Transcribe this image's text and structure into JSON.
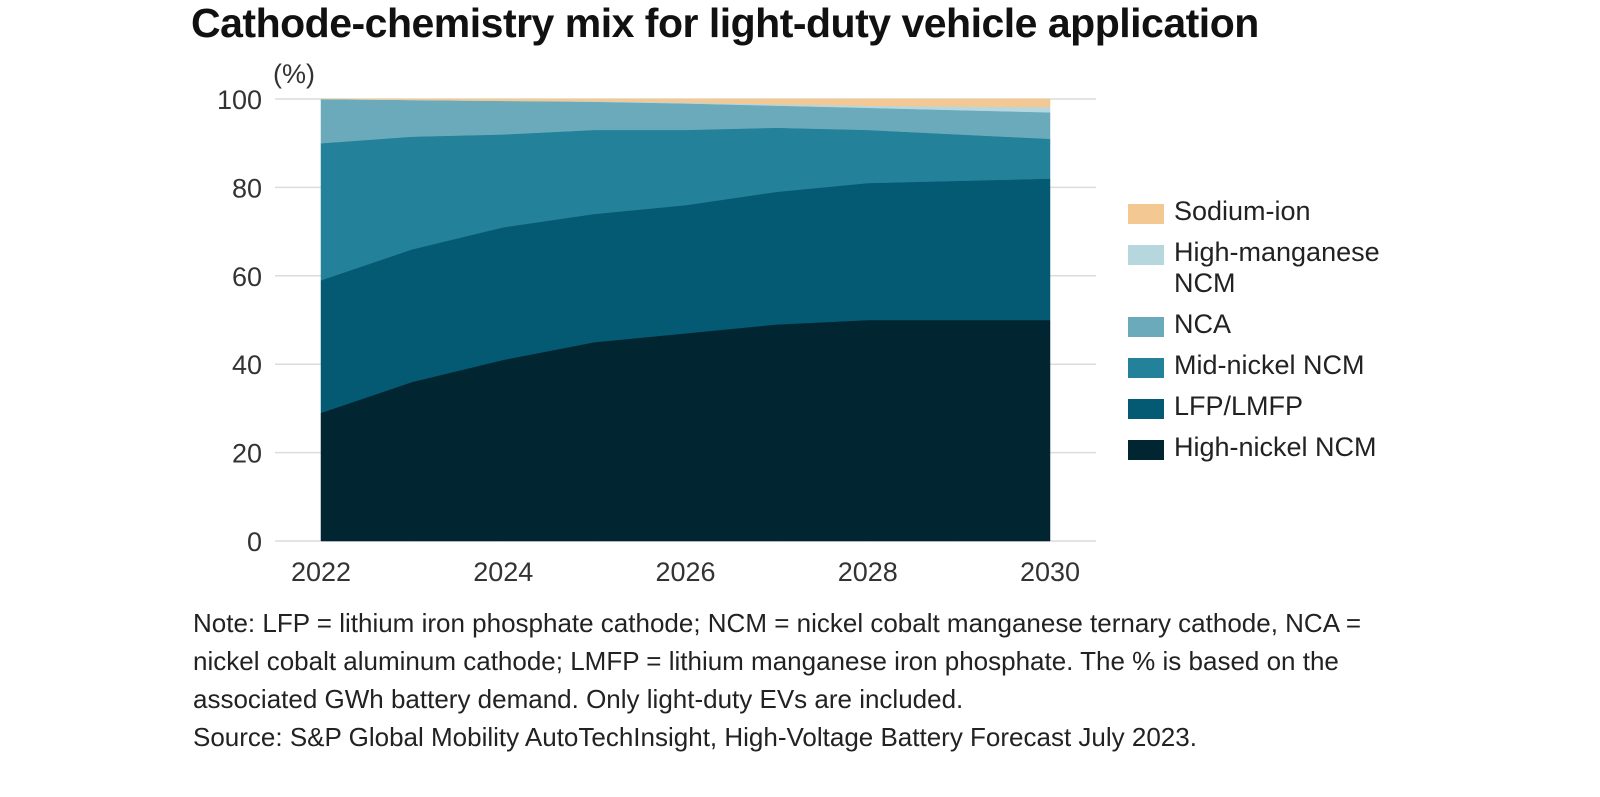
{
  "title": "Cathode-chemistry mix for light-duty vehicle application",
  "chart_data": {
    "type": "area",
    "stacked": true,
    "title": "Cathode-chemistry mix for light-duty vehicle application",
    "ylabel": "(%)",
    "xlabel": "",
    "ylim": [
      0,
      100
    ],
    "xlim": [
      2022,
      2030
    ],
    "grid": true,
    "legend_position": "right",
    "x": [
      2022,
      2023,
      2024,
      2025,
      2026,
      2027,
      2028,
      2029,
      2030
    ],
    "x_ticks": [
      2022,
      2024,
      2026,
      2028,
      2030
    ],
    "y_ticks": [
      0,
      20,
      40,
      60,
      80,
      100
    ],
    "series": [
      {
        "name": "High-nickel NCM",
        "color": "#022532",
        "values": [
          29,
          36,
          41,
          45,
          47,
          49,
          50,
          50,
          50
        ]
      },
      {
        "name": "LFP/LMFP",
        "color": "#045a72",
        "values": [
          30,
          30,
          30,
          29,
          29,
          30,
          31,
          31.5,
          32
        ]
      },
      {
        "name": "Mid-nickel NCM",
        "color": "#24819a",
        "values": [
          31,
          25.5,
          21,
          19,
          17,
          14.5,
          12,
          10.5,
          9
        ]
      },
      {
        "name": "NCA",
        "color": "#6aaabb",
        "values": [
          10,
          8.3,
          7.6,
          6.4,
          6,
          5,
          5,
          5.5,
          6
        ]
      },
      {
        "name": "High-manganese NCM",
        "color": "#b7d7df",
        "values": [
          0,
          0,
          0,
          0.1,
          0.2,
          0.3,
          0.5,
          0.8,
          1.2
        ]
      },
      {
        "name": "Sodium-ion",
        "color": "#f3c892",
        "values": [
          0,
          0.2,
          0.4,
          0.5,
          0.8,
          1.2,
          1.5,
          1.7,
          1.8
        ]
      }
    ]
  },
  "legend": [
    {
      "label": "Sodium-ion",
      "color": "#f3c892"
    },
    {
      "label": "High-manganese NCM",
      "color": "#b7d7df"
    },
    {
      "label": "NCA",
      "color": "#6aaabb"
    },
    {
      "label": "Mid-nickel NCM",
      "color": "#24819a"
    },
    {
      "label": "LFP/LMFP",
      "color": "#045a72"
    },
    {
      "label": "High-nickel NCM",
      "color": "#022532"
    }
  ],
  "notes": {
    "note": "Note: LFP = lithium iron phosphate cathode; NCM = nickel cobalt manganese ternary cathode, NCA = nickel cobalt aluminum cathode; LMFP = lithium manganese iron phosphate. The % is based on the associated GWh battery demand. Only light-duty EVs are included.",
    "source": "Source: S&P Global Mobility AutoTechInsight, High-Voltage Battery Forecast July 2023."
  }
}
